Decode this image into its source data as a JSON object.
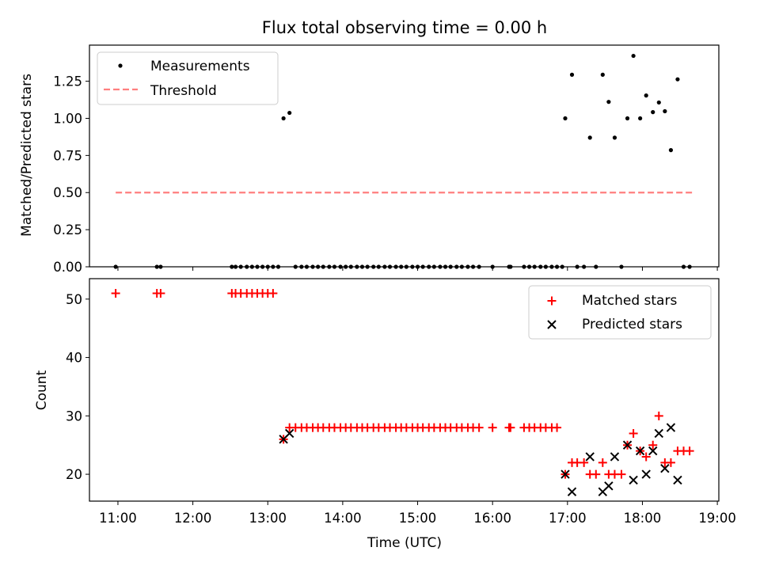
{
  "title": "Flux total observing time = 0.00 h",
  "xlabel": "Time (UTC)",
  "colors": {
    "matched": "#ff0000",
    "predicted": "#000000",
    "threshold": "#ff7f7f",
    "measurement": "#000000"
  },
  "chart_data": [
    {
      "type": "scatter",
      "name": "top",
      "ylabel": "Matched/Predicted stars",
      "xlim": [
        10.62,
        19.02
      ],
      "ylim": [
        0.0,
        1.4932
      ],
      "yticks": [
        0.0,
        0.25,
        0.5,
        0.75,
        1.0,
        1.25
      ],
      "yticklabels": [
        "0.00",
        "0.25",
        "0.50",
        "0.75",
        "1.00",
        "1.25"
      ],
      "legend": {
        "placement": "top-left",
        "labels": {
          "measurements": "Measurements",
          "threshold": "Threshold"
        }
      },
      "threshold": {
        "y": 0.5,
        "x": [
          10.97,
          18.67
        ]
      },
      "measurements": {
        "x": [
          10.97,
          11.52,
          11.57,
          12.52,
          12.57,
          12.64,
          12.72,
          12.79,
          12.86,
          12.93,
          13.0,
          13.07,
          13.14,
          13.21,
          13.29,
          13.37,
          13.45,
          13.52,
          13.6,
          13.67,
          13.74,
          13.82,
          13.89,
          13.97,
          14.04,
          14.11,
          14.19,
          14.26,
          14.33,
          14.41,
          14.48,
          14.56,
          14.63,
          14.71,
          14.78,
          14.85,
          14.93,
          15.0,
          15.07,
          15.15,
          15.22,
          15.3,
          15.37,
          15.44,
          15.52,
          15.59,
          15.67,
          15.74,
          15.82,
          16.0,
          16.22,
          16.24,
          16.42,
          16.49,
          16.56,
          16.64,
          16.71,
          16.79,
          16.86,
          16.93,
          16.97,
          17.06,
          17.13,
          17.22,
          17.3,
          17.38,
          17.47,
          17.55,
          17.63,
          17.72,
          17.8,
          17.88,
          17.97,
          18.05,
          18.14,
          18.22,
          18.3,
          18.38,
          18.47,
          18.55,
          18.63
        ],
        "y": [
          0.0,
          0.0,
          0.0,
          0.0,
          0.0,
          0.0,
          0.0,
          0.0,
          0.0,
          0.0,
          0.0,
          0.0,
          0.0,
          1.0,
          1.037,
          0.0,
          0.0,
          0.0,
          0.0,
          0.0,
          0.0,
          0.0,
          0.0,
          0.0,
          0.0,
          0.0,
          0.0,
          0.0,
          0.0,
          0.0,
          0.0,
          0.0,
          0.0,
          0.0,
          0.0,
          0.0,
          0.0,
          0.0,
          0.0,
          0.0,
          0.0,
          0.0,
          0.0,
          0.0,
          0.0,
          0.0,
          0.0,
          0.0,
          0.0,
          0.0,
          0.0,
          0.0,
          0.0,
          0.0,
          0.0,
          0.0,
          0.0,
          0.0,
          0.0,
          0.0,
          1.0,
          1.294,
          0.0,
          0.0,
          0.87,
          0.0,
          1.294,
          1.111,
          0.87,
          0.0,
          1.0,
          1.421,
          1.0,
          1.154,
          1.042,
          1.107,
          1.048,
          0.786,
          1.263,
          0.0,
          0.0
        ]
      }
    },
    {
      "type": "scatter",
      "name": "bottom",
      "ylabel": "Count",
      "xlim": [
        10.62,
        19.02
      ],
      "ylim": [
        15.4,
        53.5
      ],
      "yticks": [
        20,
        30,
        40,
        50
      ],
      "yticklabels": [
        "20",
        "30",
        "40",
        "50"
      ],
      "xticks": [
        11,
        12,
        13,
        14,
        15,
        16,
        17,
        18,
        19
      ],
      "xticklabels": [
        "11:00",
        "12:00",
        "13:00",
        "14:00",
        "15:00",
        "16:00",
        "17:00",
        "18:00",
        "19:00"
      ],
      "legend": {
        "placement": "top-right",
        "labels": {
          "matched": "Matched stars",
          "predicted": "Predicted stars"
        }
      },
      "series": [
        {
          "name": "Matched stars",
          "x": [
            10.97,
            11.52,
            11.57,
            12.52,
            12.57,
            12.64,
            12.72,
            12.79,
            12.86,
            12.93,
            13.0,
            13.07,
            13.21,
            13.29,
            13.37,
            13.45,
            13.52,
            13.6,
            13.67,
            13.74,
            13.82,
            13.89,
            13.97,
            14.04,
            14.11,
            14.19,
            14.26,
            14.33,
            14.41,
            14.48,
            14.56,
            14.63,
            14.71,
            14.78,
            14.85,
            14.93,
            15.0,
            15.07,
            15.15,
            15.22,
            15.3,
            15.37,
            15.44,
            15.52,
            15.59,
            15.67,
            15.74,
            15.82,
            16.0,
            16.22,
            16.24,
            16.42,
            16.49,
            16.56,
            16.64,
            16.71,
            16.79,
            16.86,
            16.97,
            17.06,
            17.13,
            17.22,
            17.3,
            17.38,
            17.47,
            17.55,
            17.63,
            17.72,
            17.8,
            17.88,
            17.97,
            18.05,
            18.14,
            18.22,
            18.3,
            18.38,
            18.47,
            18.55,
            18.63
          ],
          "y": [
            51,
            51,
            51,
            51,
            51,
            51,
            51,
            51,
            51,
            51,
            51,
            51,
            26,
            28,
            28,
            28,
            28,
            28,
            28,
            28,
            28,
            28,
            28,
            28,
            28,
            28,
            28,
            28,
            28,
            28,
            28,
            28,
            28,
            28,
            28,
            28,
            28,
            28,
            28,
            28,
            28,
            28,
            28,
            28,
            28,
            28,
            28,
            28,
            28,
            28,
            28,
            28,
            28,
            28,
            28,
            28,
            28,
            28,
            20,
            22,
            22,
            22,
            20,
            20,
            22,
            20,
            20,
            20,
            25,
            27,
            24,
            23,
            25,
            30,
            22,
            22,
            24,
            24,
            24
          ]
        },
        {
          "name": "Predicted stars",
          "x": [
            13.21,
            13.29,
            16.97,
            17.06,
            17.3,
            17.47,
            17.55,
            17.63,
            17.8,
            17.88,
            17.97,
            18.05,
            18.14,
            18.22,
            18.3,
            18.38,
            18.47
          ],
          "y": [
            26,
            27,
            20,
            17,
            23,
            17,
            18,
            23,
            25,
            19,
            24,
            20,
            24,
            27,
            21,
            28,
            19
          ]
        }
      ]
    }
  ]
}
